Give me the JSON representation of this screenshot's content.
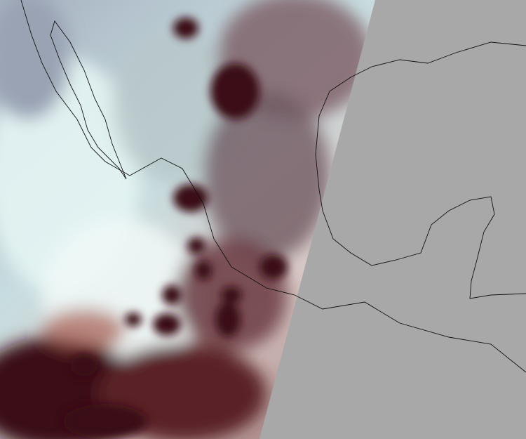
{
  "map": {
    "type": "satellite-swath",
    "colors": {
      "no_data": "#a8a8a8",
      "clear_surface": "#dff3f2",
      "haze": "#9aa6b4",
      "high_cloud": "#3a0a10",
      "mid_cloud": "#8a4a4a",
      "coastline": "#111111"
    }
  }
}
